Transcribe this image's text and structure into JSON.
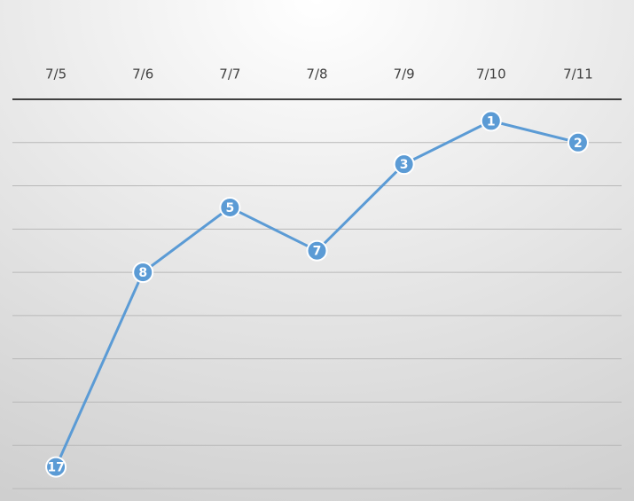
{
  "chart_data": {
    "type": "line",
    "categories": [
      "7/5",
      "7/6",
      "7/7",
      "7/8",
      "7/9",
      "7/10",
      "7/11"
    ],
    "series": [
      {
        "color": "#5b9bd5",
        "values": [
          17,
          8,
          5,
          7,
          3,
          1,
          2
        ]
      }
    ],
    "ylim": [
      0,
      18
    ],
    "yticks": [
      0,
      2,
      4,
      6,
      8,
      10,
      12,
      14,
      16,
      18
    ],
    "y_inverted": true,
    "grid": true
  }
}
